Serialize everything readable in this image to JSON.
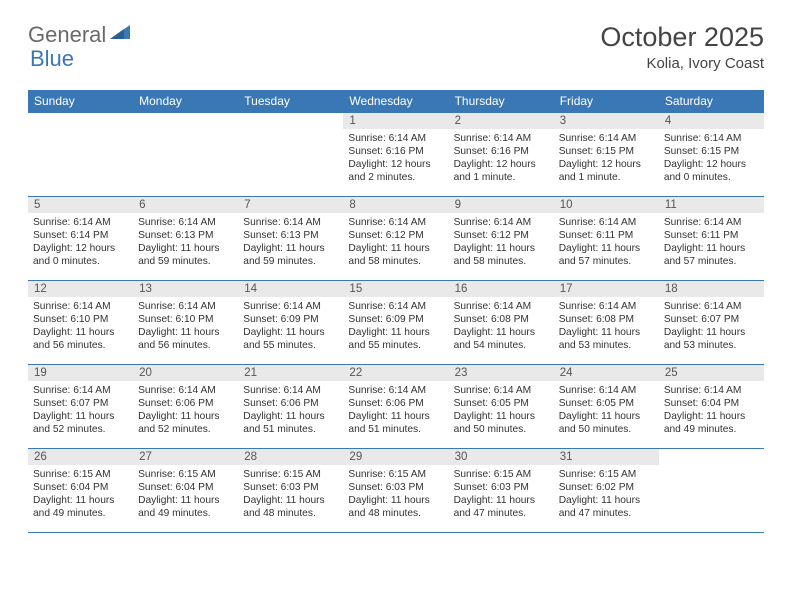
{
  "logo": {
    "text1": "General",
    "text2": "Blue",
    "color1": "#6a6a6a",
    "color2": "#3a78b5"
  },
  "title": "October 2025",
  "location": "Kolia, Ivory Coast",
  "header_bg": "#3a78b5",
  "header_fg": "#ffffff",
  "daynum_bg": "#e9e9e9",
  "border_color": "#3a78b5",
  "weekdays": [
    "Sunday",
    "Monday",
    "Tuesday",
    "Wednesday",
    "Thursday",
    "Friday",
    "Saturday"
  ],
  "weeks": [
    [
      {
        "n": "",
        "sr": "",
        "ss": "",
        "dl": ""
      },
      {
        "n": "",
        "sr": "",
        "ss": "",
        "dl": ""
      },
      {
        "n": "",
        "sr": "",
        "ss": "",
        "dl": ""
      },
      {
        "n": "1",
        "sr": "Sunrise: 6:14 AM",
        "ss": "Sunset: 6:16 PM",
        "dl": "Daylight: 12 hours and 2 minutes."
      },
      {
        "n": "2",
        "sr": "Sunrise: 6:14 AM",
        "ss": "Sunset: 6:16 PM",
        "dl": "Daylight: 12 hours and 1 minute."
      },
      {
        "n": "3",
        "sr": "Sunrise: 6:14 AM",
        "ss": "Sunset: 6:15 PM",
        "dl": "Daylight: 12 hours and 1 minute."
      },
      {
        "n": "4",
        "sr": "Sunrise: 6:14 AM",
        "ss": "Sunset: 6:15 PM",
        "dl": "Daylight: 12 hours and 0 minutes."
      }
    ],
    [
      {
        "n": "5",
        "sr": "Sunrise: 6:14 AM",
        "ss": "Sunset: 6:14 PM",
        "dl": "Daylight: 12 hours and 0 minutes."
      },
      {
        "n": "6",
        "sr": "Sunrise: 6:14 AM",
        "ss": "Sunset: 6:13 PM",
        "dl": "Daylight: 11 hours and 59 minutes."
      },
      {
        "n": "7",
        "sr": "Sunrise: 6:14 AM",
        "ss": "Sunset: 6:13 PM",
        "dl": "Daylight: 11 hours and 59 minutes."
      },
      {
        "n": "8",
        "sr": "Sunrise: 6:14 AM",
        "ss": "Sunset: 6:12 PM",
        "dl": "Daylight: 11 hours and 58 minutes."
      },
      {
        "n": "9",
        "sr": "Sunrise: 6:14 AM",
        "ss": "Sunset: 6:12 PM",
        "dl": "Daylight: 11 hours and 58 minutes."
      },
      {
        "n": "10",
        "sr": "Sunrise: 6:14 AM",
        "ss": "Sunset: 6:11 PM",
        "dl": "Daylight: 11 hours and 57 minutes."
      },
      {
        "n": "11",
        "sr": "Sunrise: 6:14 AM",
        "ss": "Sunset: 6:11 PM",
        "dl": "Daylight: 11 hours and 57 minutes."
      }
    ],
    [
      {
        "n": "12",
        "sr": "Sunrise: 6:14 AM",
        "ss": "Sunset: 6:10 PM",
        "dl": "Daylight: 11 hours and 56 minutes."
      },
      {
        "n": "13",
        "sr": "Sunrise: 6:14 AM",
        "ss": "Sunset: 6:10 PM",
        "dl": "Daylight: 11 hours and 56 minutes."
      },
      {
        "n": "14",
        "sr": "Sunrise: 6:14 AM",
        "ss": "Sunset: 6:09 PM",
        "dl": "Daylight: 11 hours and 55 minutes."
      },
      {
        "n": "15",
        "sr": "Sunrise: 6:14 AM",
        "ss": "Sunset: 6:09 PM",
        "dl": "Daylight: 11 hours and 55 minutes."
      },
      {
        "n": "16",
        "sr": "Sunrise: 6:14 AM",
        "ss": "Sunset: 6:08 PM",
        "dl": "Daylight: 11 hours and 54 minutes."
      },
      {
        "n": "17",
        "sr": "Sunrise: 6:14 AM",
        "ss": "Sunset: 6:08 PM",
        "dl": "Daylight: 11 hours and 53 minutes."
      },
      {
        "n": "18",
        "sr": "Sunrise: 6:14 AM",
        "ss": "Sunset: 6:07 PM",
        "dl": "Daylight: 11 hours and 53 minutes."
      }
    ],
    [
      {
        "n": "19",
        "sr": "Sunrise: 6:14 AM",
        "ss": "Sunset: 6:07 PM",
        "dl": "Daylight: 11 hours and 52 minutes."
      },
      {
        "n": "20",
        "sr": "Sunrise: 6:14 AM",
        "ss": "Sunset: 6:06 PM",
        "dl": "Daylight: 11 hours and 52 minutes."
      },
      {
        "n": "21",
        "sr": "Sunrise: 6:14 AM",
        "ss": "Sunset: 6:06 PM",
        "dl": "Daylight: 11 hours and 51 minutes."
      },
      {
        "n": "22",
        "sr": "Sunrise: 6:14 AM",
        "ss": "Sunset: 6:06 PM",
        "dl": "Daylight: 11 hours and 51 minutes."
      },
      {
        "n": "23",
        "sr": "Sunrise: 6:14 AM",
        "ss": "Sunset: 6:05 PM",
        "dl": "Daylight: 11 hours and 50 minutes."
      },
      {
        "n": "24",
        "sr": "Sunrise: 6:14 AM",
        "ss": "Sunset: 6:05 PM",
        "dl": "Daylight: 11 hours and 50 minutes."
      },
      {
        "n": "25",
        "sr": "Sunrise: 6:14 AM",
        "ss": "Sunset: 6:04 PM",
        "dl": "Daylight: 11 hours and 49 minutes."
      }
    ],
    [
      {
        "n": "26",
        "sr": "Sunrise: 6:15 AM",
        "ss": "Sunset: 6:04 PM",
        "dl": "Daylight: 11 hours and 49 minutes."
      },
      {
        "n": "27",
        "sr": "Sunrise: 6:15 AM",
        "ss": "Sunset: 6:04 PM",
        "dl": "Daylight: 11 hours and 49 minutes."
      },
      {
        "n": "28",
        "sr": "Sunrise: 6:15 AM",
        "ss": "Sunset: 6:03 PM",
        "dl": "Daylight: 11 hours and 48 minutes."
      },
      {
        "n": "29",
        "sr": "Sunrise: 6:15 AM",
        "ss": "Sunset: 6:03 PM",
        "dl": "Daylight: 11 hours and 48 minutes."
      },
      {
        "n": "30",
        "sr": "Sunrise: 6:15 AM",
        "ss": "Sunset: 6:03 PM",
        "dl": "Daylight: 11 hours and 47 minutes."
      },
      {
        "n": "31",
        "sr": "Sunrise: 6:15 AM",
        "ss": "Sunset: 6:02 PM",
        "dl": "Daylight: 11 hours and 47 minutes."
      },
      {
        "n": "",
        "sr": "",
        "ss": "",
        "dl": ""
      }
    ]
  ]
}
